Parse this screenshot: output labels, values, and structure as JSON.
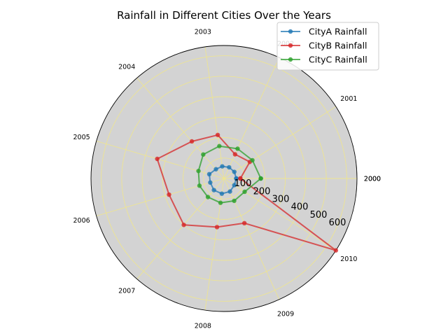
{
  "chart_data": {
    "type": "radar",
    "title": "Rainfall in Different Cities Over the Years",
    "angle_labels": [
      "2000",
      "2001",
      "2002",
      "2003",
      "2004",
      "2005",
      "2006",
      "2007",
      "2008",
      "2009",
      "2010",
      "2000"
    ],
    "radial_ticks": [
      100,
      200,
      300,
      400,
      500,
      600
    ],
    "radial_tick_labels": [
      "100",
      "200",
      "300",
      "400",
      "500",
      "600"
    ],
    "rlim": [
      0,
      650
    ],
    "grid": true,
    "legend_position": "top-right",
    "series": [
      {
        "name": "CityA Rainfall",
        "color": "#1f77b4",
        "values": [
          60,
          60,
          60,
          60,
          60,
          75,
          70,
          75,
          75,
          70,
          60,
          60
        ]
      },
      {
        "name": "CityB Rainfall",
        "color": "#d62728",
        "values": [
          80,
          150,
          130,
          215,
          240,
          340,
          280,
          300,
          240,
          240,
          650,
          80
        ]
      },
      {
        "name": "CityC Rainfall",
        "color": "#2ca02c",
        "values": [
          180,
          165,
          160,
          160,
          155,
          130,
          125,
          120,
          120,
          120,
          120,
          180
        ]
      }
    ]
  }
}
